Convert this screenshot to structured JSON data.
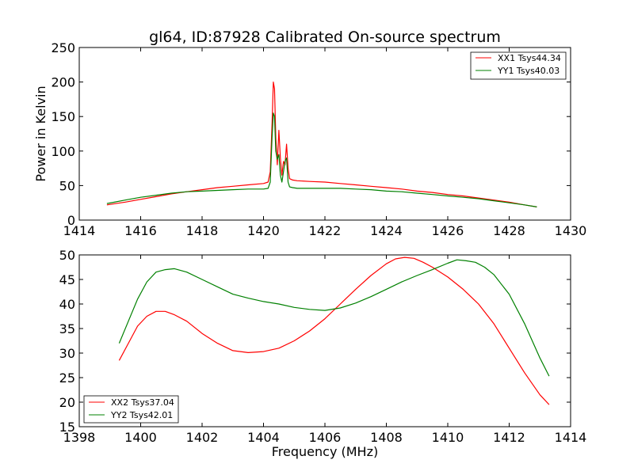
{
  "chart_data": [
    {
      "type": "line",
      "title": "gl64, ID:87928 Calibrated On-source spectrum",
      "xlabel": "",
      "ylabel": "Power in Kelvin",
      "xlim": [
        1414,
        1430
      ],
      "ylim": [
        0,
        250
      ],
      "xticks": [
        1414,
        1416,
        1418,
        1420,
        1422,
        1424,
        1426,
        1428,
        1430
      ],
      "yticks": [
        0,
        50,
        100,
        150,
        200,
        250
      ],
      "legend": "top-right",
      "grid": false,
      "series": [
        {
          "name": "XX1 Tsys44.34",
          "color": "#ff0000",
          "x": [
            1414.9,
            1415.5,
            1416,
            1416.5,
            1417,
            1417.5,
            1418,
            1418.5,
            1419,
            1419.5,
            1420,
            1420.15,
            1420.22,
            1420.28,
            1420.32,
            1420.36,
            1420.4,
            1420.45,
            1420.5,
            1420.55,
            1420.6,
            1420.65,
            1420.7,
            1420.75,
            1420.8,
            1420.85,
            1420.95,
            1421.1,
            1421.5,
            1422,
            1422.5,
            1423,
            1423.5,
            1424,
            1424.5,
            1425,
            1425.5,
            1426,
            1426.5,
            1427,
            1427.5,
            1428,
            1428.5,
            1428.9
          ],
          "values": [
            22,
            26,
            30,
            34,
            38,
            41,
            44,
            47,
            49,
            51,
            53,
            55,
            70,
            140,
            200,
            190,
            120,
            80,
            130,
            90,
            65,
            85,
            80,
            110,
            75,
            60,
            58,
            57,
            56,
            55,
            53,
            51,
            49,
            47,
            45,
            42,
            40,
            37,
            35,
            32,
            29,
            26,
            22,
            19
          ]
        },
        {
          "name": "YY1 Tsys40.03",
          "color": "#008000",
          "x": [
            1414.9,
            1415.5,
            1416,
            1416.5,
            1417,
            1417.5,
            1418,
            1418.5,
            1419,
            1419.5,
            1420,
            1420.15,
            1420.22,
            1420.28,
            1420.32,
            1420.36,
            1420.4,
            1420.45,
            1420.5,
            1420.55,
            1420.6,
            1420.65,
            1420.7,
            1420.75,
            1420.8,
            1420.85,
            1420.95,
            1421.1,
            1421.5,
            1422,
            1422.5,
            1423,
            1423.5,
            1424,
            1424.5,
            1425,
            1425.5,
            1426,
            1426.5,
            1427,
            1427.5,
            1428,
            1428.5,
            1428.9
          ],
          "values": [
            24,
            29,
            33,
            36,
            39,
            41,
            42,
            43,
            44,
            45,
            45,
            46,
            55,
            120,
            155,
            150,
            100,
            88,
            95,
            65,
            55,
            70,
            85,
            90,
            55,
            48,
            47,
            46,
            46,
            46,
            46,
            45,
            44,
            42,
            41,
            39,
            37,
            35,
            33,
            31,
            28,
            25,
            22,
            19
          ]
        }
      ]
    },
    {
      "type": "line",
      "title": "",
      "xlabel": "Frequency (MHz)",
      "ylabel": "",
      "xlim": [
        1398,
        1414
      ],
      "ylim": [
        15,
        50
      ],
      "xticks": [
        1398,
        1400,
        1402,
        1404,
        1406,
        1408,
        1410,
        1412,
        1414
      ],
      "yticks": [
        15,
        20,
        25,
        30,
        35,
        40,
        45,
        50
      ],
      "legend": "bottom-left",
      "grid": false,
      "series": [
        {
          "name": "XX2 Tsys37.04",
          "color": "#ff0000",
          "x": [
            1399.3,
            1399.6,
            1399.9,
            1400.2,
            1400.5,
            1400.8,
            1401.1,
            1401.5,
            1402,
            1402.5,
            1403,
            1403.5,
            1404,
            1404.5,
            1405,
            1405.5,
            1406,
            1406.5,
            1407,
            1407.5,
            1408,
            1408.3,
            1408.6,
            1408.9,
            1409.2,
            1409.5,
            1410,
            1410.5,
            1411,
            1411.5,
            1412,
            1412.5,
            1413,
            1413.3
          ],
          "values": [
            28.5,
            32,
            35.5,
            37.5,
            38.5,
            38.5,
            37.8,
            36.5,
            34,
            32,
            30.5,
            30.1,
            30.3,
            31,
            32.5,
            34.5,
            37,
            40,
            43,
            45.8,
            48.2,
            49.2,
            49.5,
            49.3,
            48.5,
            47.5,
            45.5,
            43,
            40,
            36,
            31,
            26,
            21.5,
            19.5
          ]
        },
        {
          "name": "YY2 Tsys42.01",
          "color": "#008000",
          "x": [
            1399.3,
            1399.6,
            1399.9,
            1400.2,
            1400.5,
            1400.8,
            1401.1,
            1401.5,
            1402,
            1402.5,
            1403,
            1403.5,
            1404,
            1404.5,
            1405,
            1405.5,
            1406,
            1406.5,
            1407,
            1407.5,
            1408,
            1408.5,
            1409,
            1409.5,
            1410,
            1410.3,
            1410.6,
            1410.9,
            1411.2,
            1411.5,
            1412,
            1412.5,
            1413,
            1413.3
          ],
          "values": [
            32,
            36.5,
            41,
            44.5,
            46.5,
            47,
            47.2,
            46.5,
            45,
            43.5,
            42,
            41.2,
            40.5,
            40,
            39.3,
            38.9,
            38.7,
            39.2,
            40.2,
            41.5,
            43,
            44.5,
            45.8,
            47,
            48.3,
            49,
            48.8,
            48.5,
            47.5,
            46,
            42,
            36,
            29,
            25.3
          ]
        }
      ]
    }
  ]
}
